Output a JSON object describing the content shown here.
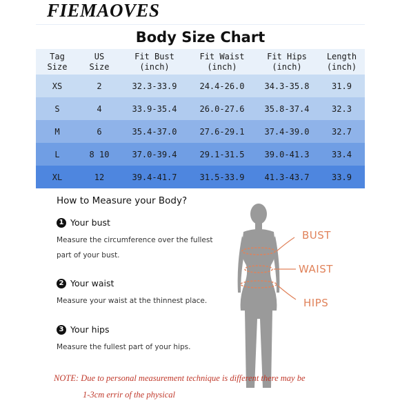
{
  "brand": "FIEMAOVES",
  "chart": {
    "title": "Body Size Chart",
    "headers": [
      "Tag\nSize",
      "US\nSize",
      "Fit Bust\n(inch)",
      "Fit Waist\n(inch)",
      "Fit Hips\n(inch)",
      "Length\n(inch)"
    ],
    "rows": [
      [
        "XS",
        "2",
        "32.3-33.9",
        "24.4-26.0",
        "34.3-35.8",
        "31.9"
      ],
      [
        "S",
        "4",
        "33.9-35.4",
        "26.0-27.6",
        "35.8-37.4",
        "32.3"
      ],
      [
        "M",
        "6",
        "35.4-37.0",
        "27.6-29.1",
        "37.4-39.0",
        "32.7"
      ],
      [
        "L",
        "8 10",
        "37.0-39.4",
        "29.1-31.5",
        "39.0-41.3",
        "33.4"
      ],
      [
        "XL",
        "12",
        "39.4-41.7",
        "31.5-33.9",
        "41.3-43.7",
        "33.9"
      ]
    ],
    "row_colors": [
      "#c8dcf3",
      "#b0cbef",
      "#8fb3e9",
      "#709ee4",
      "#4e86df"
    ]
  },
  "howto": {
    "title": "How to Measure your Body?",
    "steps": [
      {
        "num": "1",
        "title": "Your bust",
        "line1": "Measure the circumference over the fullest",
        "line2": "part of your bust."
      },
      {
        "num": "2",
        "title": "Your waist",
        "line1": "Measure your waist at the thinnest place.",
        "line2": ""
      },
      {
        "num": "3",
        "title": "Your hips",
        "line1": "Measure the fullest part of your hips.",
        "line2": ""
      }
    ]
  },
  "figure": {
    "labels": {
      "bust": "BUST",
      "waist": "WAIST",
      "hips": "HIPS"
    },
    "body_color": "#9a9a9a",
    "accent_color": "#e0825a"
  },
  "note": {
    "line1": "NOTE: Due to personal measurement technique is different there may be",
    "line2": "1-3cm errir of the physical"
  }
}
